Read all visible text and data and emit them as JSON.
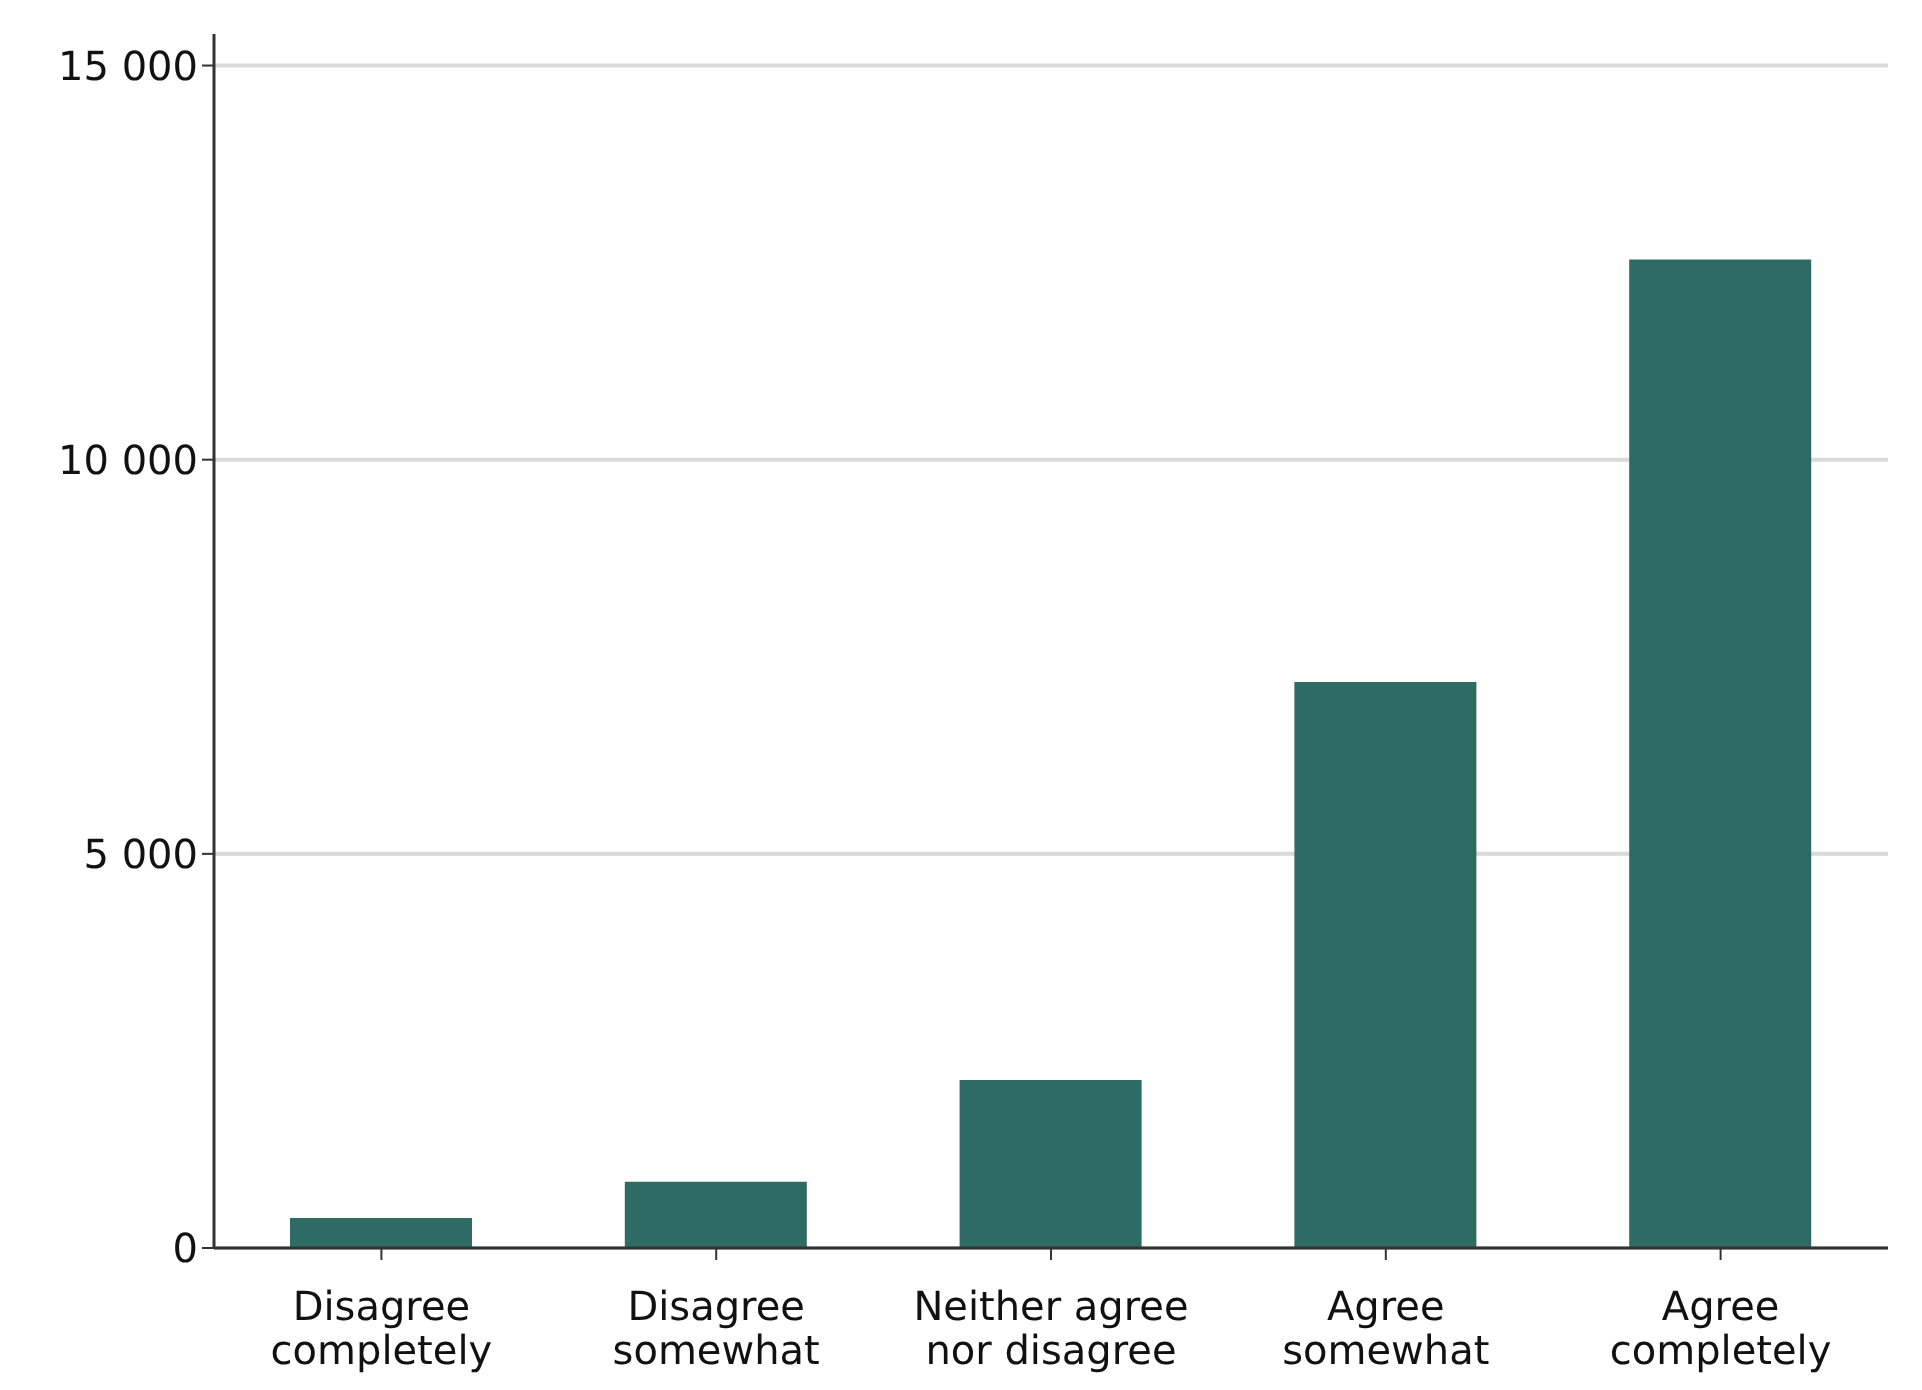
{
  "chart_data": {
    "type": "bar",
    "categories": [
      "Disagree completely",
      "Disagree somewhat",
      "Neither agree nor disagree",
      "Agree somewhat",
      "Agree completely"
    ],
    "values": [
      380,
      840,
      2130,
      7180,
      12540
    ],
    "color": "#2e6b64",
    "ylim": [
      0,
      15400
    ],
    "yticks": [
      {
        "value": 0,
        "label": "0"
      },
      {
        "value": 5000,
        "label": "5 000"
      },
      {
        "value": 10000,
        "label": "10 000"
      },
      {
        "value": 15000,
        "label": "15 000"
      }
    ],
    "grid": "y"
  }
}
